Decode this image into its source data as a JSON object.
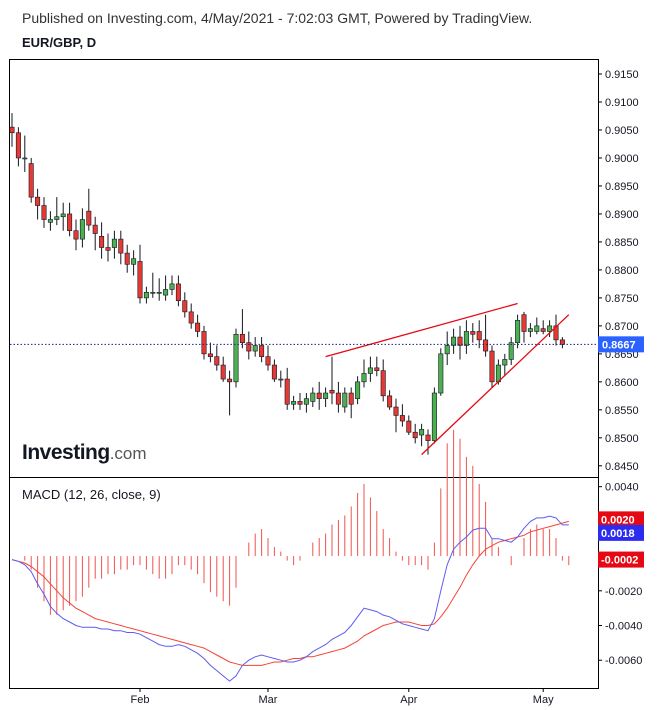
{
  "header": {
    "published": "Published on Investing.com, 4/May/2021 - 7:02:03 GMT, Powered by TradingView.",
    "symbol": "EUR/GBP, D",
    "macd_label": "MACD (12, 26, close, 9)"
  },
  "logo": {
    "brand": "Investing",
    "suffix": ".com"
  },
  "colors": {
    "up": "#4caf50",
    "down": "#e53935",
    "wick": "#131722",
    "trendline": "#e50914",
    "price_line": "#1a237e",
    "macd_line": "#5c5cf0",
    "signal_line": "#f44336",
    "histogram": "#ef5350",
    "badge_price": "#2962ff",
    "badge_red": "#e50914",
    "badge_blue": "#2c2cf0"
  },
  "chart_data": [
    {
      "type": "candlestick",
      "title": "EUR/GBP, D",
      "ylim": [
        0.843,
        0.9175
      ],
      "y_ticks": [
        "0.9150",
        "0.9100",
        "0.9050",
        "0.9000",
        "0.8950",
        "0.8900",
        "0.8850",
        "0.8800",
        "0.8750",
        "0.8700",
        "0.8650",
        "0.8600",
        "0.8550",
        "0.8500",
        "0.8450"
      ],
      "x_ticks": [
        {
          "label": "Feb",
          "index": 20
        },
        {
          "label": "Mar",
          "index": 40
        },
        {
          "label": "Apr",
          "index": 62
        },
        {
          "label": "May",
          "index": 83
        }
      ],
      "last_price": "0.8667",
      "candles": [
        {
          "o": 0.9055,
          "h": 0.908,
          "l": 0.902,
          "c": 0.9045
        },
        {
          "o": 0.9045,
          "h": 0.9055,
          "l": 0.8985,
          "c": 0.9
        },
        {
          "o": 0.9,
          "h": 0.904,
          "l": 0.8975,
          "c": 0.9
        },
        {
          "o": 0.899,
          "h": 0.9,
          "l": 0.892,
          "c": 0.893
        },
        {
          "o": 0.893,
          "h": 0.8945,
          "l": 0.889,
          "c": 0.8915
        },
        {
          "o": 0.8915,
          "h": 0.893,
          "l": 0.8875,
          "c": 0.889
        },
        {
          "o": 0.8885,
          "h": 0.8905,
          "l": 0.887,
          "c": 0.889
        },
        {
          "o": 0.889,
          "h": 0.893,
          "l": 0.888,
          "c": 0.8895
        },
        {
          "o": 0.8895,
          "h": 0.892,
          "l": 0.887,
          "c": 0.89
        },
        {
          "o": 0.89,
          "h": 0.892,
          "l": 0.886,
          "c": 0.887
        },
        {
          "o": 0.887,
          "h": 0.889,
          "l": 0.8835,
          "c": 0.8855
        },
        {
          "o": 0.8855,
          "h": 0.891,
          "l": 0.884,
          "c": 0.889
        },
        {
          "o": 0.8905,
          "h": 0.8945,
          "l": 0.887,
          "c": 0.888
        },
        {
          "o": 0.888,
          "h": 0.8895,
          "l": 0.8835,
          "c": 0.8865
        },
        {
          "o": 0.886,
          "h": 0.8885,
          "l": 0.882,
          "c": 0.884
        },
        {
          "o": 0.884,
          "h": 0.8865,
          "l": 0.8815,
          "c": 0.8835
        },
        {
          "o": 0.884,
          "h": 0.887,
          "l": 0.882,
          "c": 0.8855
        },
        {
          "o": 0.8855,
          "h": 0.887,
          "l": 0.881,
          "c": 0.883
        },
        {
          "o": 0.883,
          "h": 0.8845,
          "l": 0.8795,
          "c": 0.881
        },
        {
          "o": 0.881,
          "h": 0.8835,
          "l": 0.879,
          "c": 0.882
        },
        {
          "o": 0.8815,
          "h": 0.8845,
          "l": 0.874,
          "c": 0.875
        },
        {
          "o": 0.875,
          "h": 0.877,
          "l": 0.874,
          "c": 0.876
        },
        {
          "o": 0.876,
          "h": 0.8795,
          "l": 0.875,
          "c": 0.876
        },
        {
          "o": 0.876,
          "h": 0.8785,
          "l": 0.8745,
          "c": 0.876
        },
        {
          "o": 0.8755,
          "h": 0.879,
          "l": 0.8745,
          "c": 0.8765
        },
        {
          "o": 0.8765,
          "h": 0.879,
          "l": 0.8755,
          "c": 0.8775
        },
        {
          "o": 0.8775,
          "h": 0.879,
          "l": 0.8735,
          "c": 0.8745
        },
        {
          "o": 0.8745,
          "h": 0.876,
          "l": 0.8715,
          "c": 0.8725
        },
        {
          "o": 0.8725,
          "h": 0.874,
          "l": 0.8695,
          "c": 0.8705
        },
        {
          "o": 0.8705,
          "h": 0.872,
          "l": 0.868,
          "c": 0.869
        },
        {
          "o": 0.869,
          "h": 0.87,
          "l": 0.864,
          "c": 0.865
        },
        {
          "o": 0.865,
          "h": 0.867,
          "l": 0.8635,
          "c": 0.8645
        },
        {
          "o": 0.8645,
          "h": 0.8665,
          "l": 0.862,
          "c": 0.863
        },
        {
          "o": 0.863,
          "h": 0.8645,
          "l": 0.86,
          "c": 0.8605
        },
        {
          "o": 0.8605,
          "h": 0.862,
          "l": 0.854,
          "c": 0.86
        },
        {
          "o": 0.86,
          "h": 0.8695,
          "l": 0.859,
          "c": 0.8685
        },
        {
          "o": 0.8685,
          "h": 0.873,
          "l": 0.866,
          "c": 0.867
        },
        {
          "o": 0.867,
          "h": 0.869,
          "l": 0.864,
          "c": 0.8655
        },
        {
          "o": 0.8655,
          "h": 0.868,
          "l": 0.8645,
          "c": 0.8665
        },
        {
          "o": 0.8665,
          "h": 0.868,
          "l": 0.8635,
          "c": 0.8645
        },
        {
          "o": 0.8645,
          "h": 0.8665,
          "l": 0.862,
          "c": 0.863
        },
        {
          "o": 0.863,
          "h": 0.864,
          "l": 0.86,
          "c": 0.8605
        },
        {
          "o": 0.8605,
          "h": 0.862,
          "l": 0.859,
          "c": 0.8605
        },
        {
          "o": 0.8605,
          "h": 0.8625,
          "l": 0.855,
          "c": 0.856
        },
        {
          "o": 0.856,
          "h": 0.8575,
          "l": 0.855,
          "c": 0.8565
        },
        {
          "o": 0.8565,
          "h": 0.858,
          "l": 0.855,
          "c": 0.856
        },
        {
          "o": 0.856,
          "h": 0.858,
          "l": 0.8545,
          "c": 0.857
        },
        {
          "o": 0.8565,
          "h": 0.859,
          "l": 0.8555,
          "c": 0.858
        },
        {
          "o": 0.858,
          "h": 0.86,
          "l": 0.855,
          "c": 0.857
        },
        {
          "o": 0.857,
          "h": 0.859,
          "l": 0.8555,
          "c": 0.858
        },
        {
          "o": 0.8585,
          "h": 0.8645,
          "l": 0.856,
          "c": 0.858
        },
        {
          "o": 0.858,
          "h": 0.86,
          "l": 0.8545,
          "c": 0.856
        },
        {
          "o": 0.8555,
          "h": 0.859,
          "l": 0.8545,
          "c": 0.858
        },
        {
          "o": 0.858,
          "h": 0.859,
          "l": 0.8535,
          "c": 0.856
        },
        {
          "o": 0.857,
          "h": 0.861,
          "l": 0.856,
          "c": 0.86
        },
        {
          "o": 0.86,
          "h": 0.864,
          "l": 0.859,
          "c": 0.8615
        },
        {
          "o": 0.8615,
          "h": 0.8645,
          "l": 0.86,
          "c": 0.8625
        },
        {
          "o": 0.8625,
          "h": 0.8645,
          "l": 0.861,
          "c": 0.862
        },
        {
          "o": 0.862,
          "h": 0.864,
          "l": 0.8565,
          "c": 0.8575
        },
        {
          "o": 0.8575,
          "h": 0.8585,
          "l": 0.855,
          "c": 0.8555
        },
        {
          "o": 0.8555,
          "h": 0.857,
          "l": 0.851,
          "c": 0.854
        },
        {
          "o": 0.854,
          "h": 0.856,
          "l": 0.852,
          "c": 0.853
        },
        {
          "o": 0.853,
          "h": 0.854,
          "l": 0.8505,
          "c": 0.851
        },
        {
          "o": 0.851,
          "h": 0.8525,
          "l": 0.849,
          "c": 0.85
        },
        {
          "o": 0.8505,
          "h": 0.8525,
          "l": 0.8485,
          "c": 0.8515
        },
        {
          "o": 0.8505,
          "h": 0.8515,
          "l": 0.847,
          "c": 0.8495
        },
        {
          "o": 0.8495,
          "h": 0.859,
          "l": 0.849,
          "c": 0.858
        },
        {
          "o": 0.858,
          "h": 0.866,
          "l": 0.8575,
          "c": 0.865
        },
        {
          "o": 0.865,
          "h": 0.869,
          "l": 0.863,
          "c": 0.8665
        },
        {
          "o": 0.8665,
          "h": 0.8695,
          "l": 0.865,
          "c": 0.868
        },
        {
          "o": 0.868,
          "h": 0.87,
          "l": 0.864,
          "c": 0.8665
        },
        {
          "o": 0.8665,
          "h": 0.871,
          "l": 0.865,
          "c": 0.869
        },
        {
          "o": 0.869,
          "h": 0.8705,
          "l": 0.867,
          "c": 0.8685
        },
        {
          "o": 0.869,
          "h": 0.871,
          "l": 0.866,
          "c": 0.8675
        },
        {
          "o": 0.8675,
          "h": 0.872,
          "l": 0.8645,
          "c": 0.8655
        },
        {
          "o": 0.8655,
          "h": 0.8665,
          "l": 0.859,
          "c": 0.86
        },
        {
          "o": 0.86,
          "h": 0.864,
          "l": 0.8595,
          "c": 0.863
        },
        {
          "o": 0.863,
          "h": 0.865,
          "l": 0.861,
          "c": 0.864
        },
        {
          "o": 0.864,
          "h": 0.868,
          "l": 0.863,
          "c": 0.867
        },
        {
          "o": 0.867,
          "h": 0.872,
          "l": 0.866,
          "c": 0.871
        },
        {
          "o": 0.872,
          "h": 0.8725,
          "l": 0.867,
          "c": 0.869
        },
        {
          "o": 0.869,
          "h": 0.8705,
          "l": 0.868,
          "c": 0.8695
        },
        {
          "o": 0.869,
          "h": 0.8715,
          "l": 0.8685,
          "c": 0.87
        },
        {
          "o": 0.8695,
          "h": 0.871,
          "l": 0.8685,
          "c": 0.869
        },
        {
          "o": 0.869,
          "h": 0.871,
          "l": 0.868,
          "c": 0.87
        },
        {
          "o": 0.87,
          "h": 0.872,
          "l": 0.8665,
          "c": 0.8675
        },
        {
          "o": 0.8675,
          "h": 0.868,
          "l": 0.866,
          "c": 0.8667
        }
      ],
      "trendlines": [
        {
          "from": {
            "index": 49,
            "value": 0.8645
          },
          "to": {
            "index": 79,
            "value": 0.874
          }
        },
        {
          "from": {
            "index": 64,
            "value": 0.847
          },
          "to": {
            "index": 87,
            "value": 0.872
          }
        }
      ]
    },
    {
      "type": "line",
      "title": "MACD (12, 26, close, 9)",
      "ylim": [
        -0.0076,
        0.0045
      ],
      "y_ticks": [
        "0.0040",
        "0.0020",
        "0.0000",
        "-0.0020",
        "-0.0040",
        "-0.0060"
      ],
      "badges": [
        {
          "label": "0.0020",
          "value": 0.002,
          "color": "#e50914"
        },
        {
          "label": "0.0018",
          "value": 0.0018,
          "color": "#2c2cf0"
        },
        {
          "label": "-0.0002",
          "value": -0.0002,
          "color": "#e50914"
        }
      ],
      "series": [
        {
          "role": "macd",
          "values": [
            -0.0002,
            -0.0003,
            -0.0005,
            -0.0009,
            -0.0016,
            -0.0022,
            -0.0029,
            -0.0033,
            -0.0036,
            -0.0038,
            -0.004,
            -0.0041,
            -0.0041,
            -0.0041,
            -0.0042,
            -0.0042,
            -0.0043,
            -0.0043,
            -0.0044,
            -0.0044,
            -0.0045,
            -0.0047,
            -0.0049,
            -0.0051,
            -0.0052,
            -0.0052,
            -0.0051,
            -0.0052,
            -0.0054,
            -0.0056,
            -0.0059,
            -0.0063,
            -0.0066,
            -0.0069,
            -0.0072,
            -0.0069,
            -0.0063,
            -0.006,
            -0.0058,
            -0.0057,
            -0.0058,
            -0.0059,
            -0.006,
            -0.0061,
            -0.0061,
            -0.006,
            -0.0058,
            -0.0055,
            -0.0053,
            -0.0051,
            -0.0048,
            -0.0046,
            -0.0044,
            -0.004,
            -0.0035,
            -0.003,
            -0.0031,
            -0.0032,
            -0.0034,
            -0.0035,
            -0.0037,
            -0.0039,
            -0.004,
            -0.0041,
            -0.0042,
            -0.0043,
            -0.0036,
            -0.002,
            -0.0005,
            0.0004,
            0.0008,
            0.0011,
            0.0015,
            0.0016,
            0.0016,
            0.001,
            0.001,
            0.0009,
            0.0008,
            0.0011,
            0.0016,
            0.002,
            0.0022,
            0.0022,
            0.0023,
            0.0022,
            0.0018,
            0.0018
          ]
        },
        {
          "role": "signal",
          "values": [
            -0.0002,
            -0.0003,
            -0.0004,
            -0.0006,
            -0.0009,
            -0.0012,
            -0.0016,
            -0.002,
            -0.0024,
            -0.0027,
            -0.003,
            -0.0032,
            -0.0034,
            -0.0036,
            -0.0037,
            -0.0038,
            -0.0039,
            -0.004,
            -0.0041,
            -0.0042,
            -0.0043,
            -0.0044,
            -0.0045,
            -0.0046,
            -0.0047,
            -0.0048,
            -0.0049,
            -0.005,
            -0.0051,
            -0.0052,
            -0.0053,
            -0.0055,
            -0.0057,
            -0.0059,
            -0.0061,
            -0.0062,
            -0.0063,
            -0.0063,
            -0.0063,
            -0.0063,
            -0.0062,
            -0.0061,
            -0.0061,
            -0.006,
            -0.0059,
            -0.0059,
            -0.0058,
            -0.0058,
            -0.0057,
            -0.0056,
            -0.0055,
            -0.0054,
            -0.0053,
            -0.0051,
            -0.0049,
            -0.0046,
            -0.0044,
            -0.0042,
            -0.004,
            -0.0039,
            -0.0038,
            -0.0038,
            -0.0038,
            -0.0039,
            -0.004,
            -0.004,
            -0.0039,
            -0.0035,
            -0.003,
            -0.0024,
            -0.0018,
            -0.0011,
            -0.0005,
            0.0,
            0.0004,
            0.0006,
            0.0008,
            0.0009,
            0.001,
            0.0011,
            0.0012,
            0.0014,
            0.0015,
            0.0016,
            0.0017,
            0.0018,
            0.0019,
            0.002
          ]
        }
      ]
    }
  ]
}
